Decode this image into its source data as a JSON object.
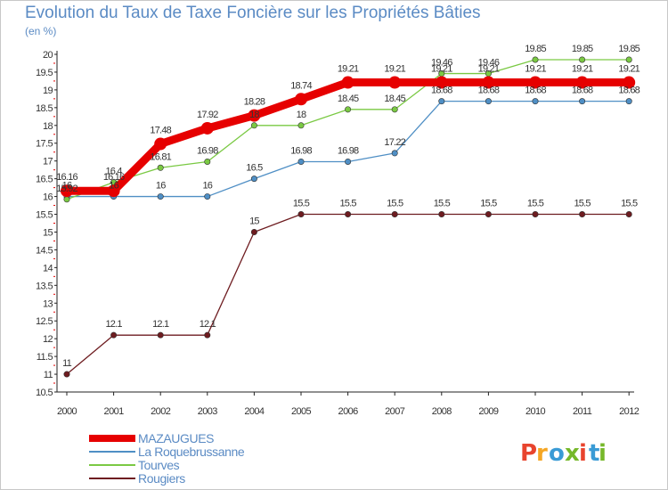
{
  "title": "Evolution du Taux de Taxe Foncière sur les Propriétés Bâties",
  "subtitle": "(en %)",
  "logo": {
    "text": "Proxiti",
    "colors": [
      "#e8442e",
      "#f5a623",
      "#3a9bd5",
      "#76b82a",
      "#e8442e",
      "#3a9bd5",
      "#76b82a"
    ]
  },
  "chart_data": {
    "type": "line",
    "categories": [
      "2000",
      "2001",
      "2002",
      "2003",
      "2004",
      "2005",
      "2006",
      "2007",
      "2008",
      "2009",
      "2010",
      "2011",
      "2012"
    ],
    "ylim": [
      10.5,
      20
    ],
    "yticks": [
      "10.5",
      "11",
      "11.5",
      "12",
      "12.5",
      "13",
      "13.5",
      "14",
      "14.5",
      "15",
      "15.5",
      "16",
      "16.5",
      "17",
      "17.5",
      "18",
      "18.5",
      "19",
      "19.5",
      "20"
    ],
    "grid": false,
    "legend": "bottom-left",
    "series": [
      {
        "name": "Rougiers",
        "color": "#6e1c20",
        "values": [
          11,
          12.1,
          12.1,
          12.1,
          15,
          15.5,
          15.5,
          15.5,
          15.5,
          15.5,
          15.5,
          15.5,
          15.5
        ],
        "labels": [
          "11",
          "12.1",
          "12.1",
          "12.1",
          "15",
          "15.5",
          "15.5",
          "15.5",
          "15.5",
          "15.5",
          "15.5",
          "15.5",
          "15.5"
        ]
      },
      {
        "name": "La Roquebrussanne",
        "color": "#4f8fc5",
        "values": [
          16,
          16,
          16,
          16,
          16.5,
          16.98,
          16.98,
          17.22,
          18.68,
          18.68,
          18.68,
          18.68,
          18.68
        ],
        "labels": [
          "16",
          "16",
          "16",
          "16",
          "16.5",
          "16.98",
          "16.98",
          "17.22",
          "18.68",
          "18.68",
          "18.68",
          "18.68",
          "18.68"
        ]
      },
      {
        "name": "Tourves",
        "color": "#7ac943",
        "values": [
          15.92,
          16.4,
          16.81,
          16.98,
          18,
          18,
          18.45,
          18.45,
          19.46,
          19.46,
          19.85,
          19.85,
          19.85
        ],
        "labels": [
          "15.92",
          "16.4",
          "16.81",
          "16.98",
          "18",
          "18",
          "18.45",
          "18.45",
          "19.46",
          "19.46",
          "19.85",
          "19.85",
          "19.85"
        ]
      },
      {
        "name": "MAZAUGUES",
        "color": "#e60000",
        "values": [
          16.16,
          16.16,
          17.48,
          17.92,
          18.28,
          18.74,
          19.21,
          19.21,
          19.21,
          19.21,
          19.21,
          19.21,
          19.21
        ],
        "labels": [
          "16.16",
          "16.16",
          "17.48",
          "17.92",
          "18.28",
          "18.74",
          "19.21",
          "19.21",
          "19.21",
          "19.21",
          "19.21",
          "19.21",
          "19.21"
        ]
      }
    ],
    "legend_order": [
      "MAZAUGUES",
      "La Roquebrussanne",
      "Tourves",
      "Rougiers"
    ]
  }
}
